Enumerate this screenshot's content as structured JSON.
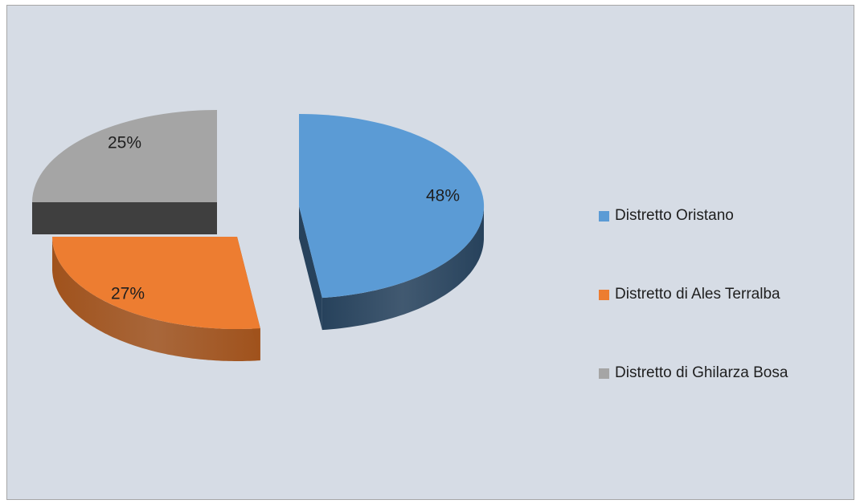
{
  "chart_data": {
    "type": "pie",
    "style": "3d-exploded",
    "title": "",
    "slices": [
      {
        "label": "Distretto Oristano",
        "value": 48,
        "display": "48%",
        "color": "#5b9bd5",
        "side_color": "#27425c"
      },
      {
        "label": "Distretto di Ales Terralba",
        "value": 27,
        "display": "27%",
        "color": "#ed7d31",
        "side_color": "#a0521c"
      },
      {
        "label": "Distretto di Ghilarza Bosa",
        "value": 25,
        "display": "25%",
        "color": "#a5a5a5",
        "side_color": "#3f3f3f"
      }
    ],
    "legend": {
      "position": "right"
    },
    "background": "#d6dce5"
  }
}
